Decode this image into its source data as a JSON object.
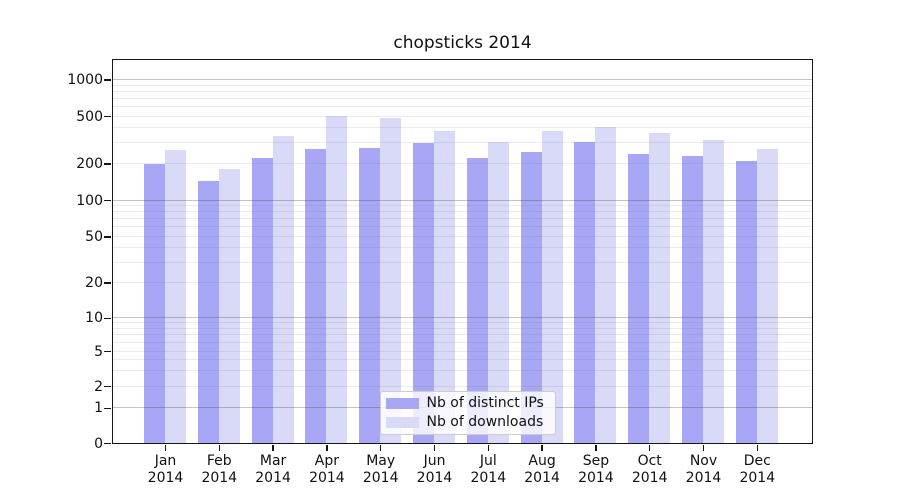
{
  "chart_data": {
    "type": "bar",
    "title": "chopsticks 2014",
    "categories": [
      "Jan 2014",
      "Feb 2014",
      "Mar 2014",
      "Apr 2014",
      "May 2014",
      "Jun 2014",
      "Jul 2014",
      "Aug 2014",
      "Sep 2014",
      "Oct 2014",
      "Nov 2014",
      "Dec 2014"
    ],
    "series": [
      {
        "name": "Nb of distinct IPs",
        "color": "#a7a7f5",
        "values": [
          197,
          144,
          224,
          266,
          271,
          300,
          221,
          251,
          304,
          239,
          231,
          211
        ]
      },
      {
        "name": "Nb of downloads",
        "color": "#d9d9f8",
        "values": [
          258,
          179,
          341,
          505,
          479,
          374,
          305,
          375,
          402,
          360,
          314,
          263
        ]
      }
    ],
    "xlabel": "",
    "ylabel": "",
    "yscale": "symlog",
    "y_ticks": [
      1000,
      500,
      200,
      100,
      50,
      20,
      10,
      5,
      2,
      1,
      0
    ],
    "ylim": [
      0,
      1500
    ],
    "grid": true,
    "legend_position": "lower center"
  }
}
